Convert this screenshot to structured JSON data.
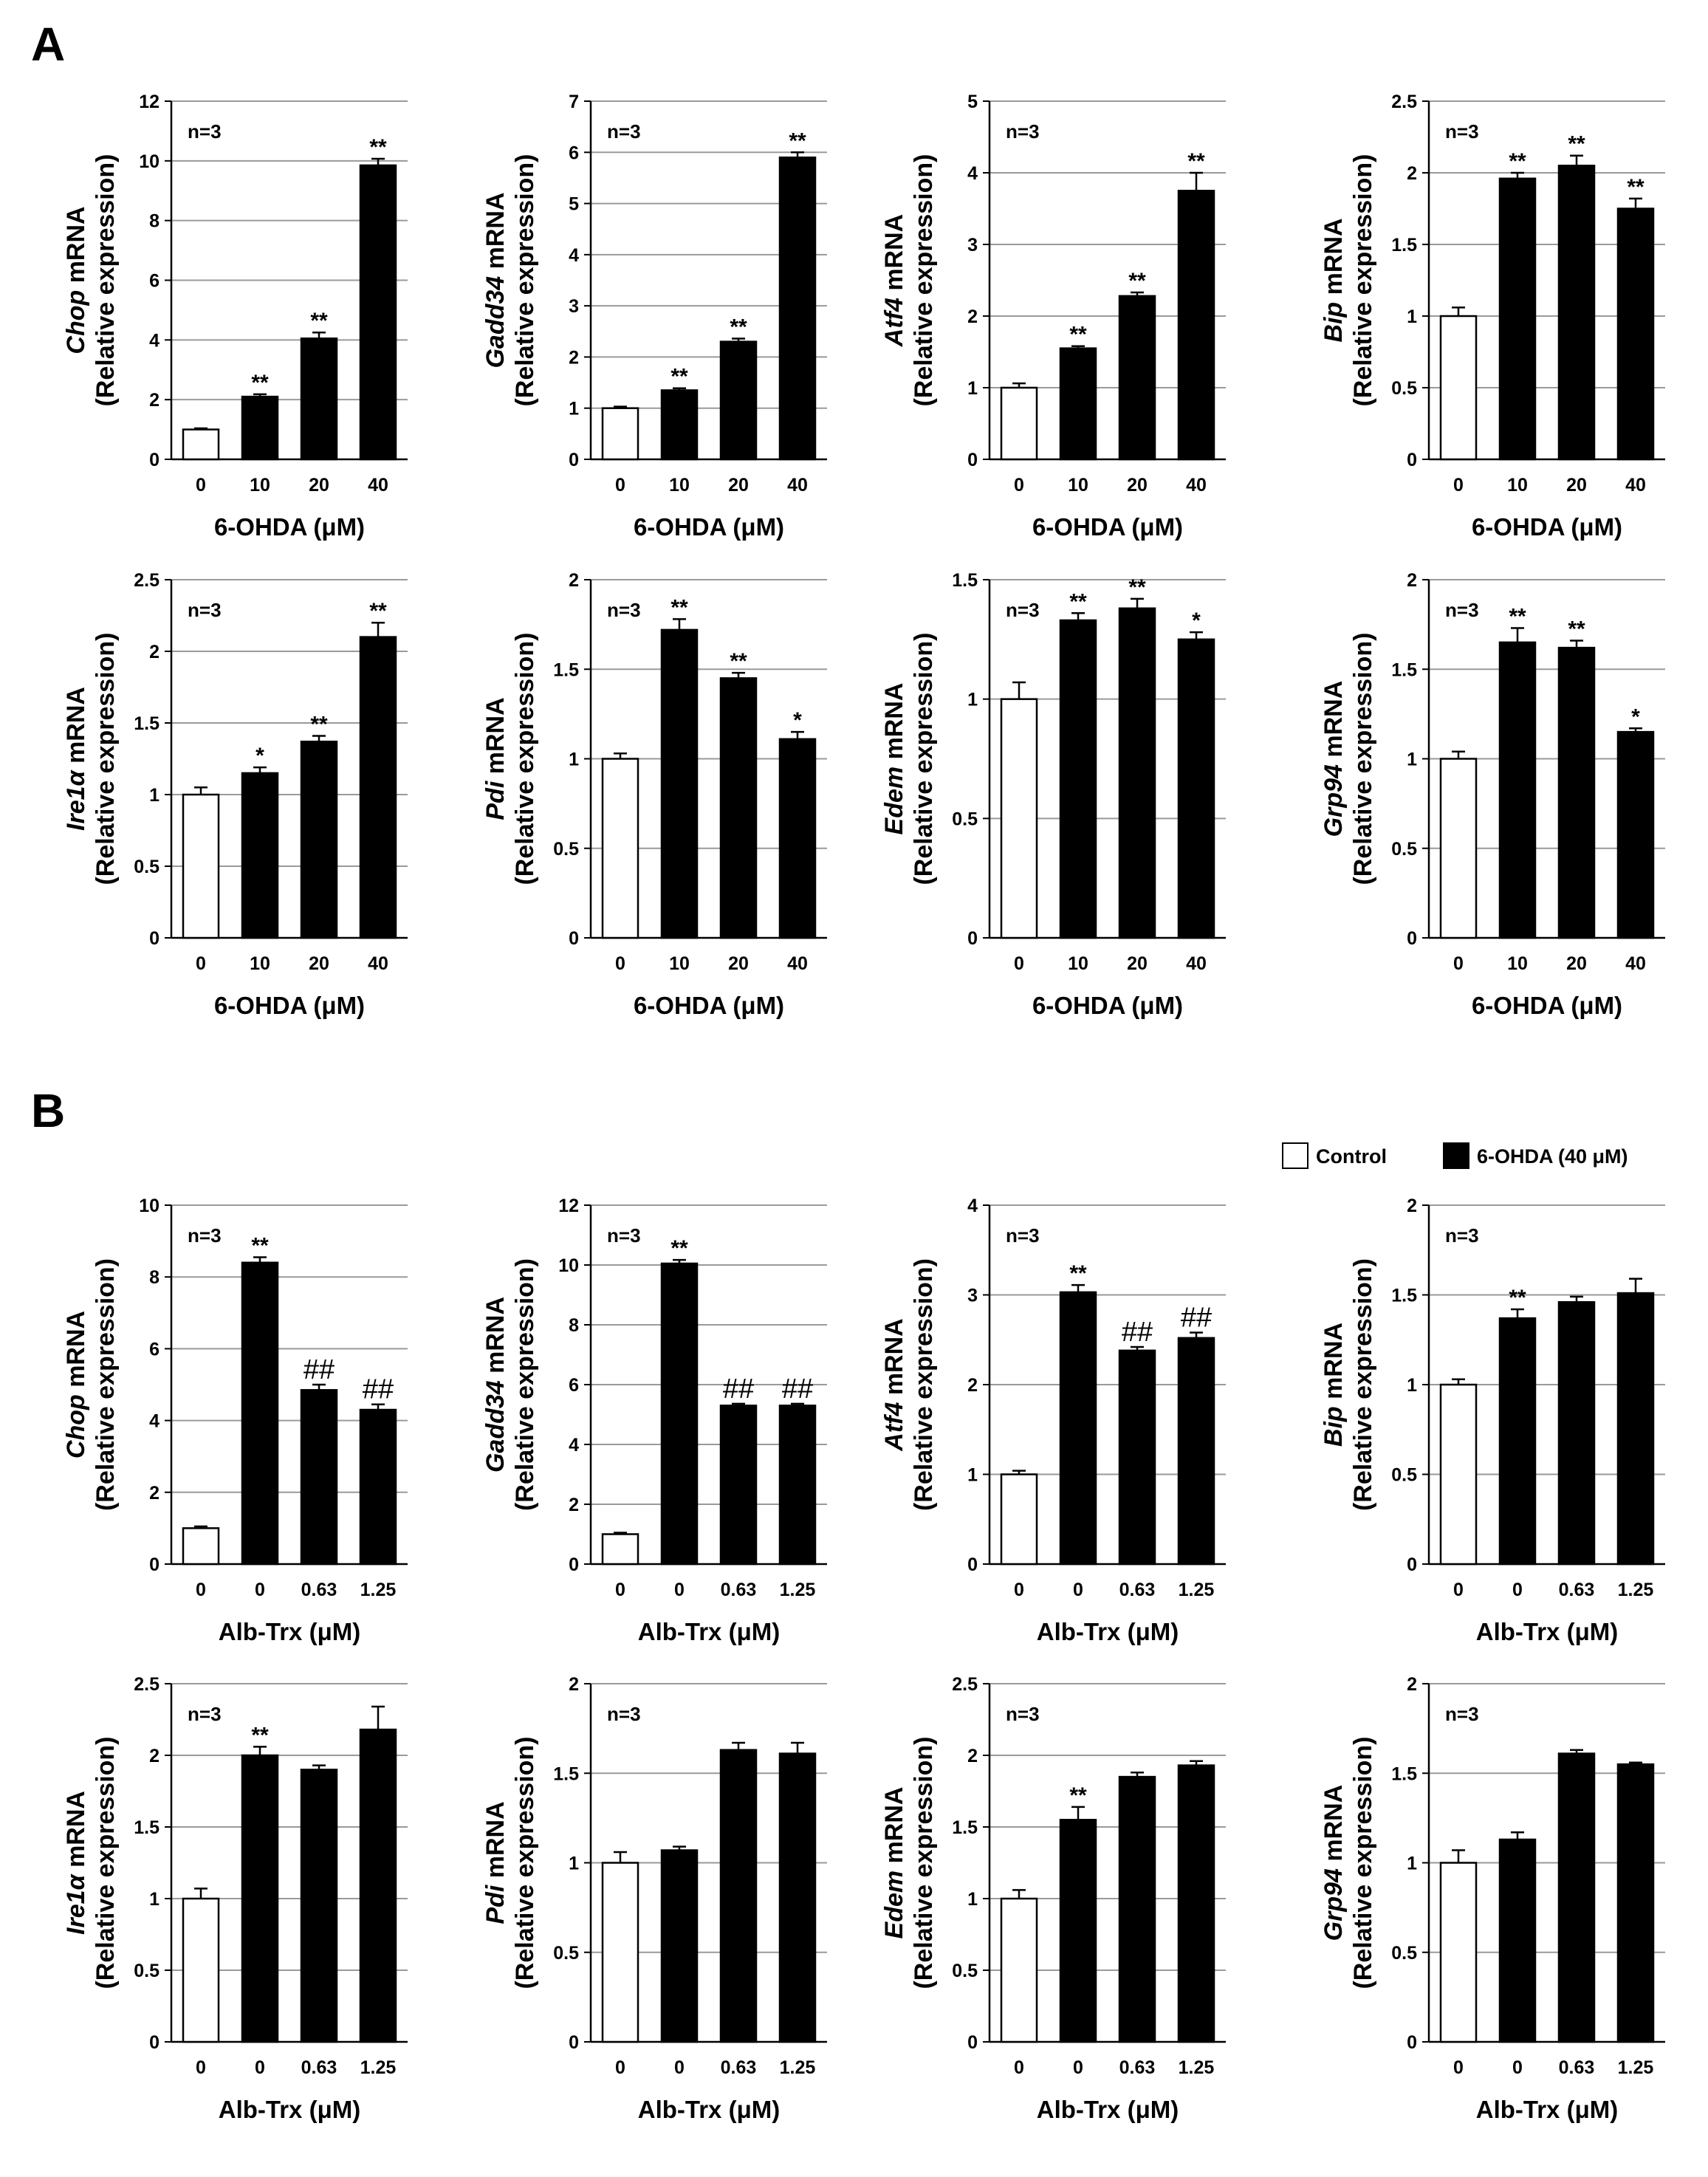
{
  "panels": {
    "A": "A",
    "B": "B"
  },
  "legend": {
    "control": "Control",
    "treated": "6-OHDA (40 μM)"
  },
  "chart_data": [
    {
      "type": "bar",
      "panel": "A",
      "gene": "Chop",
      "ylabel_suffix": " mRNA",
      "ylabel2": "(Relative expression)",
      "xlabel": "6-OHDA (μM)",
      "categories": [
        "0",
        "10",
        "20",
        "40"
      ],
      "values": [
        1.0,
        2.1,
        4.05,
        9.85
      ],
      "errors": [
        0.04,
        0.08,
        0.2,
        0.22
      ],
      "fill": [
        "white",
        "black",
        "black",
        "black"
      ],
      "significance": [
        "",
        "**",
        "**",
        "**"
      ],
      "ylim": [
        0,
        12
      ],
      "yticks": [
        "0",
        "2",
        "4",
        "6",
        "8",
        "10",
        "12"
      ],
      "n_label": "n=3"
    },
    {
      "type": "bar",
      "panel": "A",
      "gene": "Gadd34",
      "ylabel_suffix": " mRNA",
      "ylabel2": "(Relative expression)",
      "xlabel": "6-OHDA (μM)",
      "categories": [
        "0",
        "10",
        "20",
        "40"
      ],
      "values": [
        1.0,
        1.35,
        2.3,
        5.9
      ],
      "errors": [
        0.03,
        0.04,
        0.06,
        0.1
      ],
      "fill": [
        "white",
        "black",
        "black",
        "black"
      ],
      "significance": [
        "",
        "**",
        "**",
        "**"
      ],
      "ylim": [
        0,
        7
      ],
      "yticks": [
        "0",
        "1",
        "2",
        "3",
        "4",
        "5",
        "6",
        "7"
      ],
      "n_label": "n=3"
    },
    {
      "type": "bar",
      "panel": "A",
      "gene": "Atf4",
      "ylabel_suffix": " mRNA",
      "ylabel2": "(Relative expression)",
      "xlabel": "6-OHDA (μM)",
      "categories": [
        "0",
        "10",
        "20",
        "40"
      ],
      "values": [
        1.0,
        1.55,
        2.28,
        3.75
      ],
      "errors": [
        0.06,
        0.03,
        0.05,
        0.25
      ],
      "fill": [
        "white",
        "black",
        "black",
        "black"
      ],
      "significance": [
        "",
        "**",
        "**",
        "**"
      ],
      "ylim": [
        0,
        5
      ],
      "yticks": [
        "0",
        "1",
        "2",
        "3",
        "4",
        "5"
      ],
      "n_label": "n=3"
    },
    {
      "type": "bar",
      "panel": "A",
      "gene": "Bip",
      "ylabel_suffix": " mRNA",
      "ylabel2": "(Relative expression)",
      "xlabel": "6-OHDA (μM)",
      "categories": [
        "0",
        "10",
        "20",
        "40"
      ],
      "values": [
        1.0,
        1.96,
        2.05,
        1.75
      ],
      "errors": [
        0.06,
        0.04,
        0.07,
        0.07
      ],
      "fill": [
        "white",
        "black",
        "black",
        "black"
      ],
      "significance": [
        "",
        "**",
        "**",
        "**"
      ],
      "ylim": [
        0,
        2.5
      ],
      "yticks": [
        "0",
        "0.5",
        "1",
        "1.5",
        "2",
        "2.5"
      ],
      "n_label": "n=3"
    },
    {
      "type": "bar",
      "panel": "A",
      "gene": "Ire1α",
      "ylabel_suffix": " mRNA",
      "ylabel2": "(Relative expression)",
      "xlabel": "6-OHDA (μM)",
      "categories": [
        "0",
        "10",
        "20",
        "40"
      ],
      "values": [
        1.0,
        1.15,
        1.37,
        2.1
      ],
      "errors": [
        0.05,
        0.04,
        0.04,
        0.1
      ],
      "fill": [
        "white",
        "black",
        "black",
        "black"
      ],
      "significance": [
        "",
        "*",
        "**",
        "**"
      ],
      "ylim": [
        0,
        2.5
      ],
      "yticks": [
        "0",
        "0.5",
        "1",
        "1.5",
        "2",
        "2.5"
      ],
      "n_label": "n=3"
    },
    {
      "type": "bar",
      "panel": "A",
      "gene": "Pdi",
      "ylabel_suffix": " mRNA",
      "ylabel2": "(Relative expression)",
      "xlabel": "6-OHDA (μM)",
      "categories": [
        "0",
        "10",
        "20",
        "40"
      ],
      "values": [
        1.0,
        1.72,
        1.45,
        1.11
      ],
      "errors": [
        0.03,
        0.06,
        0.03,
        0.04
      ],
      "fill": [
        "white",
        "black",
        "black",
        "black"
      ],
      "significance": [
        "",
        "**",
        "**",
        "*"
      ],
      "ylim": [
        0,
        2
      ],
      "yticks": [
        "0",
        "0.5",
        "1",
        "1.5",
        "2"
      ],
      "n_label": "n=3"
    },
    {
      "type": "bar",
      "panel": "A",
      "gene": "Edem",
      "ylabel_suffix": " mRNA",
      "ylabel2": "(Relative expression)",
      "xlabel": "6-OHDA (μM)",
      "categories": [
        "0",
        "10",
        "20",
        "40"
      ],
      "values": [
        1.0,
        1.33,
        1.38,
        1.25
      ],
      "errors": [
        0.07,
        0.03,
        0.04,
        0.03
      ],
      "fill": [
        "white",
        "black",
        "black",
        "black"
      ],
      "significance": [
        "",
        "**",
        "**",
        "*"
      ],
      "ylim": [
        0,
        1.5
      ],
      "yticks": [
        "0",
        "0.5",
        "1",
        "1.5"
      ],
      "n_label": "n=3"
    },
    {
      "type": "bar",
      "panel": "A",
      "gene": "Grp94",
      "ylabel_suffix": " mRNA",
      "ylabel2": "(Relative expression)",
      "xlabel": "6-OHDA (μM)",
      "categories": [
        "0",
        "10",
        "20",
        "40"
      ],
      "values": [
        1.0,
        1.65,
        1.62,
        1.15
      ],
      "errors": [
        0.04,
        0.08,
        0.04,
        0.02
      ],
      "fill": [
        "white",
        "black",
        "black",
        "black"
      ],
      "significance": [
        "",
        "**",
        "**",
        "*"
      ],
      "ylim": [
        0,
        2
      ],
      "yticks": [
        "0",
        "0.5",
        "1",
        "1.5",
        "2"
      ],
      "n_label": "n=3"
    },
    {
      "type": "bar",
      "panel": "B",
      "gene": "Chop",
      "ylabel_suffix": " mRNA",
      "ylabel2": "(Relative expression)",
      "xlabel": "Alb-Trx (μM)",
      "categories": [
        "0",
        "0",
        "0.63",
        "1.25"
      ],
      "values": [
        1.0,
        8.4,
        4.85,
        4.3
      ],
      "errors": [
        0.05,
        0.15,
        0.15,
        0.15
      ],
      "fill": [
        "white",
        "black",
        "black",
        "black"
      ],
      "significance": [
        "",
        "**",
        "##",
        "##"
      ],
      "ylim": [
        0,
        10
      ],
      "yticks": [
        "0",
        "2",
        "4",
        "6",
        "8",
        "10"
      ],
      "n_label": "n=3"
    },
    {
      "type": "bar",
      "panel": "B",
      "gene": "Gadd34",
      "ylabel_suffix": " mRNA",
      "ylabel2": "(Relative expression)",
      "xlabel": "Alb-Trx (μM)",
      "categories": [
        "0",
        "0",
        "0.63",
        "1.25"
      ],
      "values": [
        1.0,
        10.05,
        5.3,
        5.3
      ],
      "errors": [
        0.05,
        0.12,
        0.06,
        0.06
      ],
      "fill": [
        "white",
        "black",
        "black",
        "black"
      ],
      "significance": [
        "",
        "**",
        "##",
        "##"
      ],
      "ylim": [
        0,
        12
      ],
      "yticks": [
        "0",
        "2",
        "4",
        "6",
        "8",
        "10",
        "12"
      ],
      "n_label": "n=3"
    },
    {
      "type": "bar",
      "panel": "B",
      "gene": "Atf4",
      "ylabel_suffix": " mRNA",
      "ylabel2": "(Relative expression)",
      "xlabel": "Alb-Trx (μM)",
      "categories": [
        "0",
        "0",
        "0.63",
        "1.25"
      ],
      "values": [
        1.0,
        3.03,
        2.38,
        2.52
      ],
      "errors": [
        0.04,
        0.08,
        0.04,
        0.06
      ],
      "fill": [
        "white",
        "black",
        "black",
        "black"
      ],
      "significance": [
        "",
        "**",
        "##",
        "##"
      ],
      "ylim": [
        0,
        4
      ],
      "yticks": [
        "0",
        "1",
        "2",
        "3",
        "4"
      ],
      "n_label": "n=3"
    },
    {
      "type": "bar",
      "panel": "B",
      "gene": "Bip",
      "ylabel_suffix": " mRNA",
      "ylabel2": "(Relative expression)",
      "xlabel": "Alb-Trx (μM)",
      "categories": [
        "0",
        "0",
        "0.63",
        "1.25"
      ],
      "values": [
        1.0,
        1.37,
        1.46,
        1.51
      ],
      "errors": [
        0.03,
        0.05,
        0.03,
        0.08
      ],
      "fill": [
        "white",
        "black",
        "black",
        "black"
      ],
      "significance": [
        "",
        "**",
        "",
        ""
      ],
      "ylim": [
        0,
        2
      ],
      "yticks": [
        "0",
        "0.5",
        "1",
        "1.5",
        "2"
      ],
      "n_label": "n=3"
    },
    {
      "type": "bar",
      "panel": "B",
      "gene": "Ire1α",
      "ylabel_suffix": " mRNA",
      "ylabel2": "(Relative expression)",
      "xlabel": "Alb-Trx (μM)",
      "categories": [
        "0",
        "0",
        "0.63",
        "1.25"
      ],
      "values": [
        1.0,
        2.0,
        1.9,
        2.18
      ],
      "errors": [
        0.07,
        0.06,
        0.03,
        0.16
      ],
      "fill": [
        "white",
        "black",
        "black",
        "black"
      ],
      "significance": [
        "",
        "**",
        "",
        ""
      ],
      "ylim": [
        0,
        2.5
      ],
      "yticks": [
        "0",
        "0.5",
        "1",
        "1.5",
        "2",
        "2.5"
      ],
      "n_label": "n=3"
    },
    {
      "type": "bar",
      "panel": "B",
      "gene": "Pdi",
      "ylabel_suffix": " mRNA",
      "ylabel2": "(Relative expression)",
      "xlabel": "Alb-Trx (μM)",
      "categories": [
        "0",
        "0",
        "0.63",
        "1.25"
      ],
      "values": [
        1.0,
        1.07,
        1.63,
        1.61
      ],
      "errors": [
        0.06,
        0.02,
        0.04,
        0.06
      ],
      "fill": [
        "white",
        "black",
        "black",
        "black"
      ],
      "significance": [
        "",
        "",
        "",
        ""
      ],
      "ylim": [
        0,
        2
      ],
      "yticks": [
        "0",
        "0.5",
        "1",
        "1.5",
        "2"
      ],
      "n_label": "n=3"
    },
    {
      "type": "bar",
      "panel": "B",
      "gene": "Edem",
      "ylabel_suffix": " mRNA",
      "ylabel2": "(Relative expression)",
      "xlabel": "Alb-Trx (μM)",
      "categories": [
        "0",
        "0",
        "0.63",
        "1.25"
      ],
      "values": [
        1.0,
        1.55,
        1.85,
        1.93
      ],
      "errors": [
        0.06,
        0.09,
        0.03,
        0.03
      ],
      "fill": [
        "white",
        "black",
        "black",
        "black"
      ],
      "significance": [
        "",
        "**",
        "",
        ""
      ],
      "ylim": [
        0,
        2.5
      ],
      "yticks": [
        "0",
        "0.5",
        "1",
        "1.5",
        "2",
        "2.5"
      ],
      "n_label": "n=3"
    },
    {
      "type": "bar",
      "panel": "B",
      "gene": "Grp94",
      "ylabel_suffix": " mRNA",
      "ylabel2": "(Relative expression)",
      "xlabel": "Alb-Trx (μM)",
      "categories": [
        "0",
        "0",
        "0.63",
        "1.25"
      ],
      "values": [
        1.0,
        1.13,
        1.61,
        1.55
      ],
      "errors": [
        0.07,
        0.04,
        0.02,
        0.01
      ],
      "fill": [
        "white",
        "black",
        "black",
        "black"
      ],
      "significance": [
        "",
        "",
        "",
        ""
      ],
      "ylim": [
        0,
        2
      ],
      "yticks": [
        "0",
        "0.5",
        "1",
        "1.5",
        "2"
      ],
      "n_label": "n=3"
    }
  ]
}
